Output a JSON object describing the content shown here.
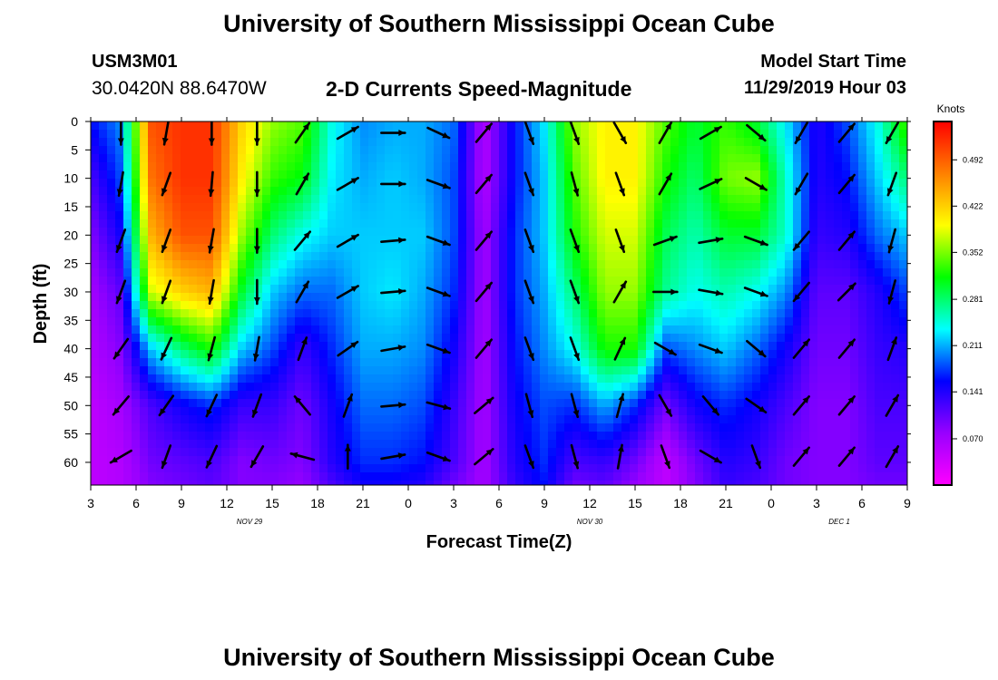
{
  "page": {
    "title_top": "University of Southern Mississippi Ocean Cube",
    "title_bottom": "University of Southern Mississippi Ocean Cube",
    "station_id": "USM3M01",
    "location": "30.0420N 88.6470W",
    "subtitle": "2-D Currents Speed-Magnitude",
    "model_start_label": "Model Start Time",
    "model_start_value": "11/29/2019 Hour 03"
  },
  "colors": {
    "scale": [
      "#ff00ff",
      "#9900ff",
      "#0000ff",
      "#00ffff",
      "#00ff00",
      "#ffff00",
      "#ff8000",
      "#ff0000"
    ]
  },
  "chart_data": {
    "type": "heatmap",
    "title": "2-D Currents Speed-Magnitude",
    "xlabel": "Forecast Time(Z)",
    "ylabel": "Depth (ft)",
    "x_tick_labels": [
      "3",
      "6",
      "9",
      "12",
      "15",
      "18",
      "21",
      "0",
      "3",
      "6",
      "9",
      "12",
      "15",
      "18",
      "21",
      "0",
      "3",
      "6",
      "9"
    ],
    "x_range_hours": [
      0,
      54
    ],
    "date_labels": [
      {
        "text": "NOV 29",
        "hour": 10.5
      },
      {
        "text": "NOV 30",
        "hour": 33
      },
      {
        "text": "DEC 1",
        "hour": 49.5
      }
    ],
    "y_ticks": [
      0,
      5,
      10,
      15,
      20,
      25,
      30,
      35,
      40,
      45,
      50,
      55,
      60
    ],
    "ylim": [
      0,
      64
    ],
    "colorbar": {
      "label": "Knots",
      "ticks": [
        "0.492",
        "0.422",
        "0.352",
        "0.281",
        "0.211",
        "0.141",
        "0.070"
      ],
      "range": [
        0,
        0.55
      ]
    },
    "time_hours": [
      0,
      2,
      4,
      6,
      8,
      10,
      12,
      14,
      16,
      18,
      20,
      22,
      24,
      26,
      28,
      30,
      32,
      34,
      36,
      38,
      40,
      42,
      44,
      46,
      48,
      50,
      52,
      54
    ],
    "depth_ft": [
      0,
      10,
      20,
      30,
      40,
      50,
      60,
      64
    ],
    "speed_knots": [
      [
        0.16,
        0.12,
        0.09,
        0.07,
        0.06,
        0.05,
        0.05,
        0.05
      ],
      [
        0.2,
        0.18,
        0.15,
        0.11,
        0.09,
        0.07,
        0.06,
        0.06
      ],
      [
        0.5,
        0.48,
        0.44,
        0.38,
        0.22,
        0.12,
        0.1,
        0.09
      ],
      [
        0.52,
        0.52,
        0.5,
        0.42,
        0.28,
        0.15,
        0.11,
        0.1
      ],
      [
        0.52,
        0.52,
        0.5,
        0.44,
        0.32,
        0.17,
        0.12,
        0.11
      ],
      [
        0.42,
        0.4,
        0.36,
        0.3,
        0.22,
        0.13,
        0.09,
        0.09
      ],
      [
        0.36,
        0.33,
        0.28,
        0.22,
        0.18,
        0.13,
        0.1,
        0.09
      ],
      [
        0.34,
        0.31,
        0.24,
        0.19,
        0.13,
        0.1,
        0.09,
        0.08
      ],
      [
        0.24,
        0.23,
        0.22,
        0.19,
        0.17,
        0.15,
        0.14,
        0.12
      ],
      [
        0.2,
        0.21,
        0.22,
        0.22,
        0.21,
        0.19,
        0.17,
        0.15
      ],
      [
        0.21,
        0.22,
        0.22,
        0.23,
        0.21,
        0.19,
        0.17,
        0.15
      ],
      [
        0.21,
        0.21,
        0.22,
        0.21,
        0.2,
        0.18,
        0.16,
        0.14
      ],
      [
        0.19,
        0.18,
        0.18,
        0.17,
        0.15,
        0.13,
        0.12,
        0.1
      ],
      [
        0.06,
        0.06,
        0.07,
        0.07,
        0.07,
        0.07,
        0.07,
        0.07
      ],
      [
        0.16,
        0.16,
        0.17,
        0.17,
        0.16,
        0.15,
        0.14,
        0.13
      ],
      [
        0.23,
        0.22,
        0.22,
        0.21,
        0.2,
        0.18,
        0.17,
        0.16
      ],
      [
        0.36,
        0.34,
        0.32,
        0.28,
        0.24,
        0.17,
        0.12,
        0.1
      ],
      [
        0.4,
        0.4,
        0.38,
        0.36,
        0.32,
        0.21,
        0.13,
        0.11
      ],
      [
        0.4,
        0.4,
        0.38,
        0.36,
        0.32,
        0.17,
        0.1,
        0.08
      ],
      [
        0.34,
        0.32,
        0.29,
        0.27,
        0.18,
        0.1,
        0.05,
        0.05
      ],
      [
        0.3,
        0.28,
        0.26,
        0.24,
        0.2,
        0.15,
        0.1,
        0.09
      ],
      [
        0.33,
        0.35,
        0.3,
        0.26,
        0.22,
        0.17,
        0.14,
        0.13
      ],
      [
        0.3,
        0.36,
        0.3,
        0.24,
        0.19,
        0.15,
        0.13,
        0.12
      ],
      [
        0.23,
        0.25,
        0.25,
        0.2,
        0.15,
        0.12,
        0.1,
        0.1
      ],
      [
        0.14,
        0.14,
        0.13,
        0.11,
        0.1,
        0.09,
        0.09,
        0.09
      ],
      [
        0.18,
        0.16,
        0.14,
        0.11,
        0.1,
        0.09,
        0.09,
        0.09
      ],
      [
        0.24,
        0.22,
        0.19,
        0.14,
        0.13,
        0.12,
        0.11,
        0.1
      ],
      [
        0.34,
        0.28,
        0.22,
        0.18,
        0.14,
        0.12,
        0.11,
        0.1
      ]
    ],
    "vectors": {
      "columns_hours": [
        2,
        5,
        8,
        11,
        14,
        17,
        20,
        23,
        26,
        29,
        32,
        35,
        38,
        41,
        44,
        47,
        50,
        53
      ],
      "rows_depth_ft": [
        2,
        11,
        21,
        30,
        40,
        50,
        59
      ],
      "direction_deg": [
        [
          180,
          190,
          200,
          200,
          215,
          220,
          240
        ],
        [
          190,
          200,
          200,
          200,
          205,
          215,
          200
        ],
        [
          180,
          185,
          190,
          190,
          195,
          205,
          205
        ],
        [
          180,
          180,
          180,
          180,
          190,
          200,
          210
        ],
        [
          35,
          30,
          40,
          30,
          20,
          320,
          285
        ],
        [
          60,
          60,
          60,
          60,
          55,
          20,
          0
        ],
        [
          90,
          90,
          85,
          85,
          80,
          85,
          80
        ],
        [
          115,
          110,
          110,
          110,
          110,
          105,
          110
        ],
        [
          40,
          40,
          40,
          40,
          40,
          50,
          50
        ],
        [
          160,
          160,
          160,
          160,
          160,
          165,
          160
        ],
        [
          160,
          165,
          160,
          160,
          160,
          165,
          165
        ],
        [
          150,
          160,
          160,
          30,
          25,
          15,
          10
        ],
        [
          30,
          30,
          70,
          90,
          120,
          150,
          160
        ],
        [
          60,
          65,
          80,
          100,
          110,
          140,
          120
        ],
        [
          130,
          120,
          110,
          110,
          130,
          125,
          160
        ],
        [
          210,
          210,
          220,
          220,
          40,
          40,
          40
        ],
        [
          40,
          40,
          40,
          45,
          40,
          40,
          40
        ],
        [
          210,
          200,
          195,
          195,
          20,
          30,
          30
        ]
      ]
    }
  }
}
